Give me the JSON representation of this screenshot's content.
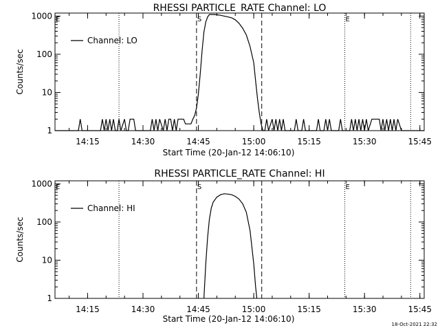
{
  "footer": {
    "timestamp": "18-Oct-2021 22:32"
  },
  "chart_data": [
    {
      "type": "line",
      "title": "RHESSI PARTICLE_RATE Channel: LO",
      "xlabel": "Start Time (20-Jan-12 14:06:10)",
      "ylabel": "Counts/sec",
      "y_scale": "log",
      "ylim": [
        1,
        1200
      ],
      "xlim": [
        "14:06:10",
        "15:46:10"
      ],
      "x_ticks": [
        "14:15",
        "14:30",
        "14:45",
        "15:00",
        "15:15",
        "15:30",
        "15:45"
      ],
      "y_ticks": [
        "1",
        "10",
        "100",
        "1000"
      ],
      "legend": {
        "label": "Channel: LO",
        "placement": "top-left"
      },
      "markers": [
        {
          "label": "S",
          "time": "14:44:30",
          "style": "dashed"
        },
        {
          "time": "15:02:10",
          "style": "dashed"
        },
        {
          "label": "E",
          "time": "15:24:40",
          "style": "dotted"
        },
        {
          "time": "14:23:30",
          "style": "dotted"
        },
        {
          "time": "15:42:30",
          "style": "dotted"
        }
      ],
      "series": [
        {
          "name": "Channel: LO",
          "x": [
            "14:06:10",
            "14:12:30",
            "14:13:00",
            "14:13:30",
            "14:18:30",
            "14:19:00",
            "14:19:30",
            "14:20:00",
            "14:20:30",
            "14:21:00",
            "14:21:30",
            "14:22:00",
            "14:22:30",
            "14:23:00",
            "14:23:30",
            "14:24:00",
            "14:25:00",
            "14:25:30",
            "14:26:00",
            "14:26:30",
            "14:27:00",
            "14:27:30",
            "14:28:00",
            "14:32:00",
            "14:32:30",
            "14:33:00",
            "14:33:30",
            "14:34:00",
            "14:34:30",
            "14:35:30",
            "14:36:00",
            "14:36:30",
            "14:37:00",
            "14:37:30",
            "14:38:00",
            "14:38:30",
            "14:39:00",
            "14:39:30",
            "14:40:00",
            "14:40:30",
            "14:41:00",
            "14:41:30",
            "14:42:00",
            "14:42:30",
            "14:43:00",
            "14:43:30",
            "14:44:00",
            "14:44:30",
            "14:45:00",
            "14:45:30",
            "14:46:00",
            "14:46:30",
            "14:47:00",
            "14:47:30",
            "14:48:00",
            "14:49:00",
            "14:50:00",
            "14:51:00",
            "14:52:00",
            "14:53:00",
            "14:54:00",
            "14:55:00",
            "14:56:00",
            "14:57:00",
            "14:58:00",
            "14:59:00",
            "15:00:00",
            "15:00:30",
            "15:01:00",
            "15:01:30",
            "15:02:00",
            "15:02:30",
            "15:03:00",
            "15:03:30",
            "15:04:00",
            "15:05:00",
            "15:05:30",
            "15:06:00",
            "15:06:30",
            "15:07:00",
            "15:07:30",
            "15:08:00",
            "15:08:30",
            "15:11:00",
            "15:11:30",
            "15:12:00",
            "15:13:00",
            "15:13:30",
            "15:14:00",
            "15:14:30",
            "15:17:00",
            "15:17:30",
            "15:18:00",
            "15:19:00",
            "15:19:30",
            "15:20:00",
            "15:20:30",
            "15:21:00",
            "15:23:00",
            "15:23:30",
            "15:24:00",
            "15:26:00",
            "15:26:30",
            "15:27:00",
            "15:27:30",
            "15:28:00",
            "15:28:30",
            "15:29:00",
            "15:29:30",
            "15:30:00",
            "15:30:30",
            "15:31:00",
            "15:32:00",
            "15:33:00",
            "15:33:30",
            "15:34:00",
            "15:34:30",
            "15:35:00",
            "15:35:30",
            "15:36:00",
            "15:36:30",
            "15:37:00",
            "15:37:30",
            "15:38:00",
            "15:38:30",
            "15:39:00",
            "15:40:00",
            "15:41:00",
            "15:46:10"
          ],
          "y": [
            1,
            1,
            2,
            1,
            1,
            2,
            1,
            2,
            1,
            2,
            1,
            2,
            1,
            1,
            2,
            1,
            2,
            1,
            1,
            2,
            2,
            2,
            1,
            1,
            2,
            1,
            2,
            1,
            2,
            1,
            2,
            1,
            2,
            2,
            1,
            2,
            1,
            2,
            2,
            2,
            2,
            1.5,
            1.5,
            1.5,
            1.5,
            2,
            2.5,
            4,
            9,
            30,
            120,
            380,
            700,
            950,
            1100,
            1100,
            1080,
            1050,
            1000,
            950,
            900,
            800,
            650,
            480,
            320,
            160,
            60,
            20,
            7,
            3,
            1.5,
            1,
            1,
            2,
            1,
            2,
            1,
            2,
            1,
            2,
            1,
            2,
            1,
            1,
            2,
            1,
            1,
            2,
            1,
            1,
            1,
            2,
            1,
            1,
            2,
            1,
            2,
            1,
            1,
            2,
            1,
            1,
            2,
            1,
            2,
            1,
            2,
            1,
            2,
            1,
            2,
            1,
            2,
            2,
            2,
            2,
            1,
            2,
            1,
            2,
            1,
            2,
            1,
            2,
            1,
            2,
            1,
            1,
            1
          ]
        }
      ]
    },
    {
      "type": "line",
      "title": "RHESSI PARTICLE_RATE Channel: HI",
      "xlabel": "Start Time (20-Jan-12 14:06:10)",
      "ylabel": "Counts/sec",
      "y_scale": "log",
      "ylim": [
        1,
        1200
      ],
      "xlim": [
        "14:06:10",
        "15:46:10"
      ],
      "x_ticks": [
        "14:15",
        "14:30",
        "14:45",
        "15:00",
        "15:15",
        "15:30",
        "15:45"
      ],
      "y_ticks": [
        "1",
        "10",
        "100",
        "1000"
      ],
      "legend": {
        "label": "Channel: HI",
        "placement": "top-left"
      },
      "markers": [
        {
          "label": "S",
          "time": "14:44:30",
          "style": "dashed"
        },
        {
          "time": "15:02:10",
          "style": "dashed"
        },
        {
          "label": "E",
          "time": "15:24:40",
          "style": "dotted"
        },
        {
          "time": "14:23:30",
          "style": "dotted"
        },
        {
          "time": "15:42:30",
          "style": "dotted"
        }
      ],
      "series": [
        {
          "name": "Channel: HI",
          "x": [
            "14:46:30",
            "14:47:00",
            "14:47:30",
            "14:48:00",
            "14:48:30",
            "14:49:00",
            "14:50:00",
            "14:51:00",
            "14:52:00",
            "14:53:00",
            "14:54:00",
            "14:55:00",
            "14:56:00",
            "14:57:00",
            "14:58:00",
            "14:59:00",
            "15:00:00",
            "15:00:30",
            "15:00:50"
          ],
          "y": [
            1,
            8,
            40,
            120,
            230,
            330,
            450,
            520,
            550,
            540,
            520,
            470,
            400,
            300,
            180,
            60,
            8,
            2,
            1
          ]
        }
      ]
    }
  ]
}
